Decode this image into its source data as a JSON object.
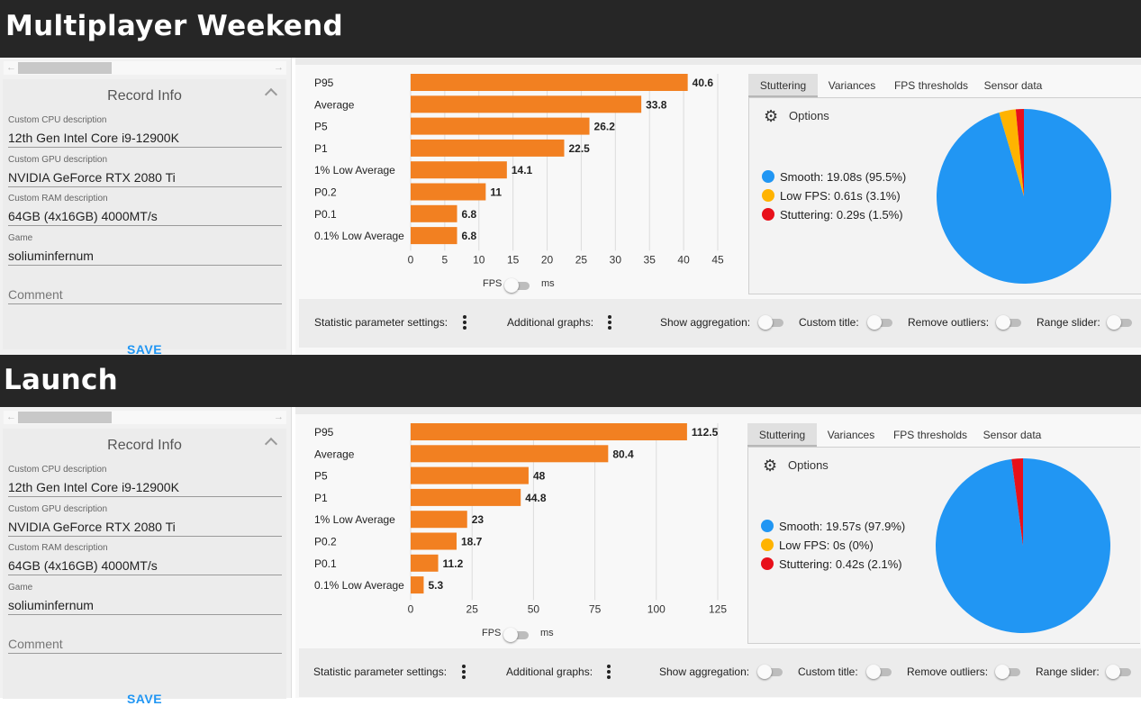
{
  "sections": [
    {
      "title": "Multiplayer Weekend",
      "record": {
        "header": "Record Info",
        "fields": [
          {
            "label": "Custom CPU description",
            "value": "12th Gen Intel Core i9-12900K"
          },
          {
            "label": "Custom GPU description",
            "value": "NVIDIA GeForce RTX 2080 Ti"
          },
          {
            "label": "Custom RAM description",
            "value": "64GB (4x16GB) 4000MT/s"
          },
          {
            "label": "Game",
            "value": "soliuminfernum"
          }
        ],
        "comment_placeholder": "Comment",
        "save_label": "SAVE"
      },
      "toggle": {
        "left": "FPS",
        "right": "ms"
      },
      "tabs": [
        "Stuttering",
        "Variances",
        "FPS thresholds",
        "Sensor data"
      ],
      "options_label": "Options",
      "stutter_legend": [
        {
          "label": "Smooth:",
          "value": "19.08s (95.5%)",
          "color": "#2196f3"
        },
        {
          "label": "Low FPS:",
          "value": "0.61s (3.1%)",
          "color": "#ffb300"
        },
        {
          "label": "Stuttering:",
          "value": "0.29s (1.5%)",
          "color": "#e8101a"
        }
      ],
      "bottom": {
        "statistic": "Statistic parameter settings:",
        "additional": "Additional graphs:",
        "aggregation": "Show aggregation:",
        "custom_title": "Custom title:",
        "outliers": "Remove outliers:",
        "range": "Range slider:"
      }
    },
    {
      "title": "Launch",
      "record": {
        "header": "Record Info",
        "fields": [
          {
            "label": "Custom CPU description",
            "value": "12th Gen Intel Core i9-12900K"
          },
          {
            "label": "Custom GPU description",
            "value": "NVIDIA GeForce RTX 2080 Ti"
          },
          {
            "label": "Custom RAM description",
            "value": "64GB (4x16GB) 4000MT/s"
          },
          {
            "label": "Game",
            "value": "soliuminfernum"
          }
        ],
        "comment_placeholder": "Comment",
        "save_label": "SAVE"
      },
      "toggle": {
        "left": "FPS",
        "right": "ms"
      },
      "tabs": [
        "Stuttering",
        "Variances",
        "FPS thresholds",
        "Sensor data"
      ],
      "options_label": "Options",
      "stutter_legend": [
        {
          "label": "Smooth:",
          "value": "19.57s (97.9%)",
          "color": "#2196f3"
        },
        {
          "label": "Low FPS:",
          "value": "0s (0%)",
          "color": "#ffb300"
        },
        {
          "label": "Stuttering:",
          "value": "0.42s (2.1%)",
          "color": "#e8101a"
        }
      ],
      "bottom": {
        "statistic": "Statistic parameter settings:",
        "additional": "Additional graphs:",
        "aggregation": "Show aggregation:",
        "custom_title": "Custom title:",
        "outliers": "Remove outliers:",
        "range": "Range slider:"
      }
    }
  ],
  "chart_data": [
    {
      "type": "bar",
      "orientation": "horizontal",
      "categories": [
        "P95",
        "Average",
        "P5",
        "P1",
        "1% Low Average",
        "P0.2",
        "P0.1",
        "0.1% Low Average"
      ],
      "values": [
        40.6,
        33.8,
        26.2,
        22.5,
        14.1,
        11,
        6.8,
        6.8
      ],
      "xlim": [
        0,
        45
      ],
      "xticks": [
        0,
        5,
        10,
        15,
        20,
        25,
        30,
        35,
        40,
        45
      ],
      "bar_color": "#f28021",
      "grid": "vertical"
    },
    {
      "type": "bar",
      "orientation": "horizontal",
      "categories": [
        "P95",
        "Average",
        "P5",
        "P1",
        "1% Low Average",
        "P0.2",
        "P0.1",
        "0.1% Low Average"
      ],
      "values": [
        112.5,
        80.4,
        48,
        44.8,
        23,
        18.7,
        11.2,
        5.3
      ],
      "xlim": [
        0,
        125
      ],
      "xticks": [
        0,
        25,
        50,
        75,
        100,
        125
      ],
      "bar_color": "#f28021",
      "grid": "vertical"
    },
    {
      "type": "pie",
      "labels": [
        "Smooth",
        "Low FPS",
        "Stuttering"
      ],
      "values": [
        95.5,
        3.1,
        1.5
      ],
      "colors": [
        "#2196f3",
        "#ffb300",
        "#e8101a"
      ]
    },
    {
      "type": "pie",
      "labels": [
        "Smooth",
        "Low FPS",
        "Stuttering"
      ],
      "values": [
        97.9,
        0,
        2.1
      ],
      "colors": [
        "#2196f3",
        "#ffb300",
        "#e8101a"
      ]
    }
  ]
}
